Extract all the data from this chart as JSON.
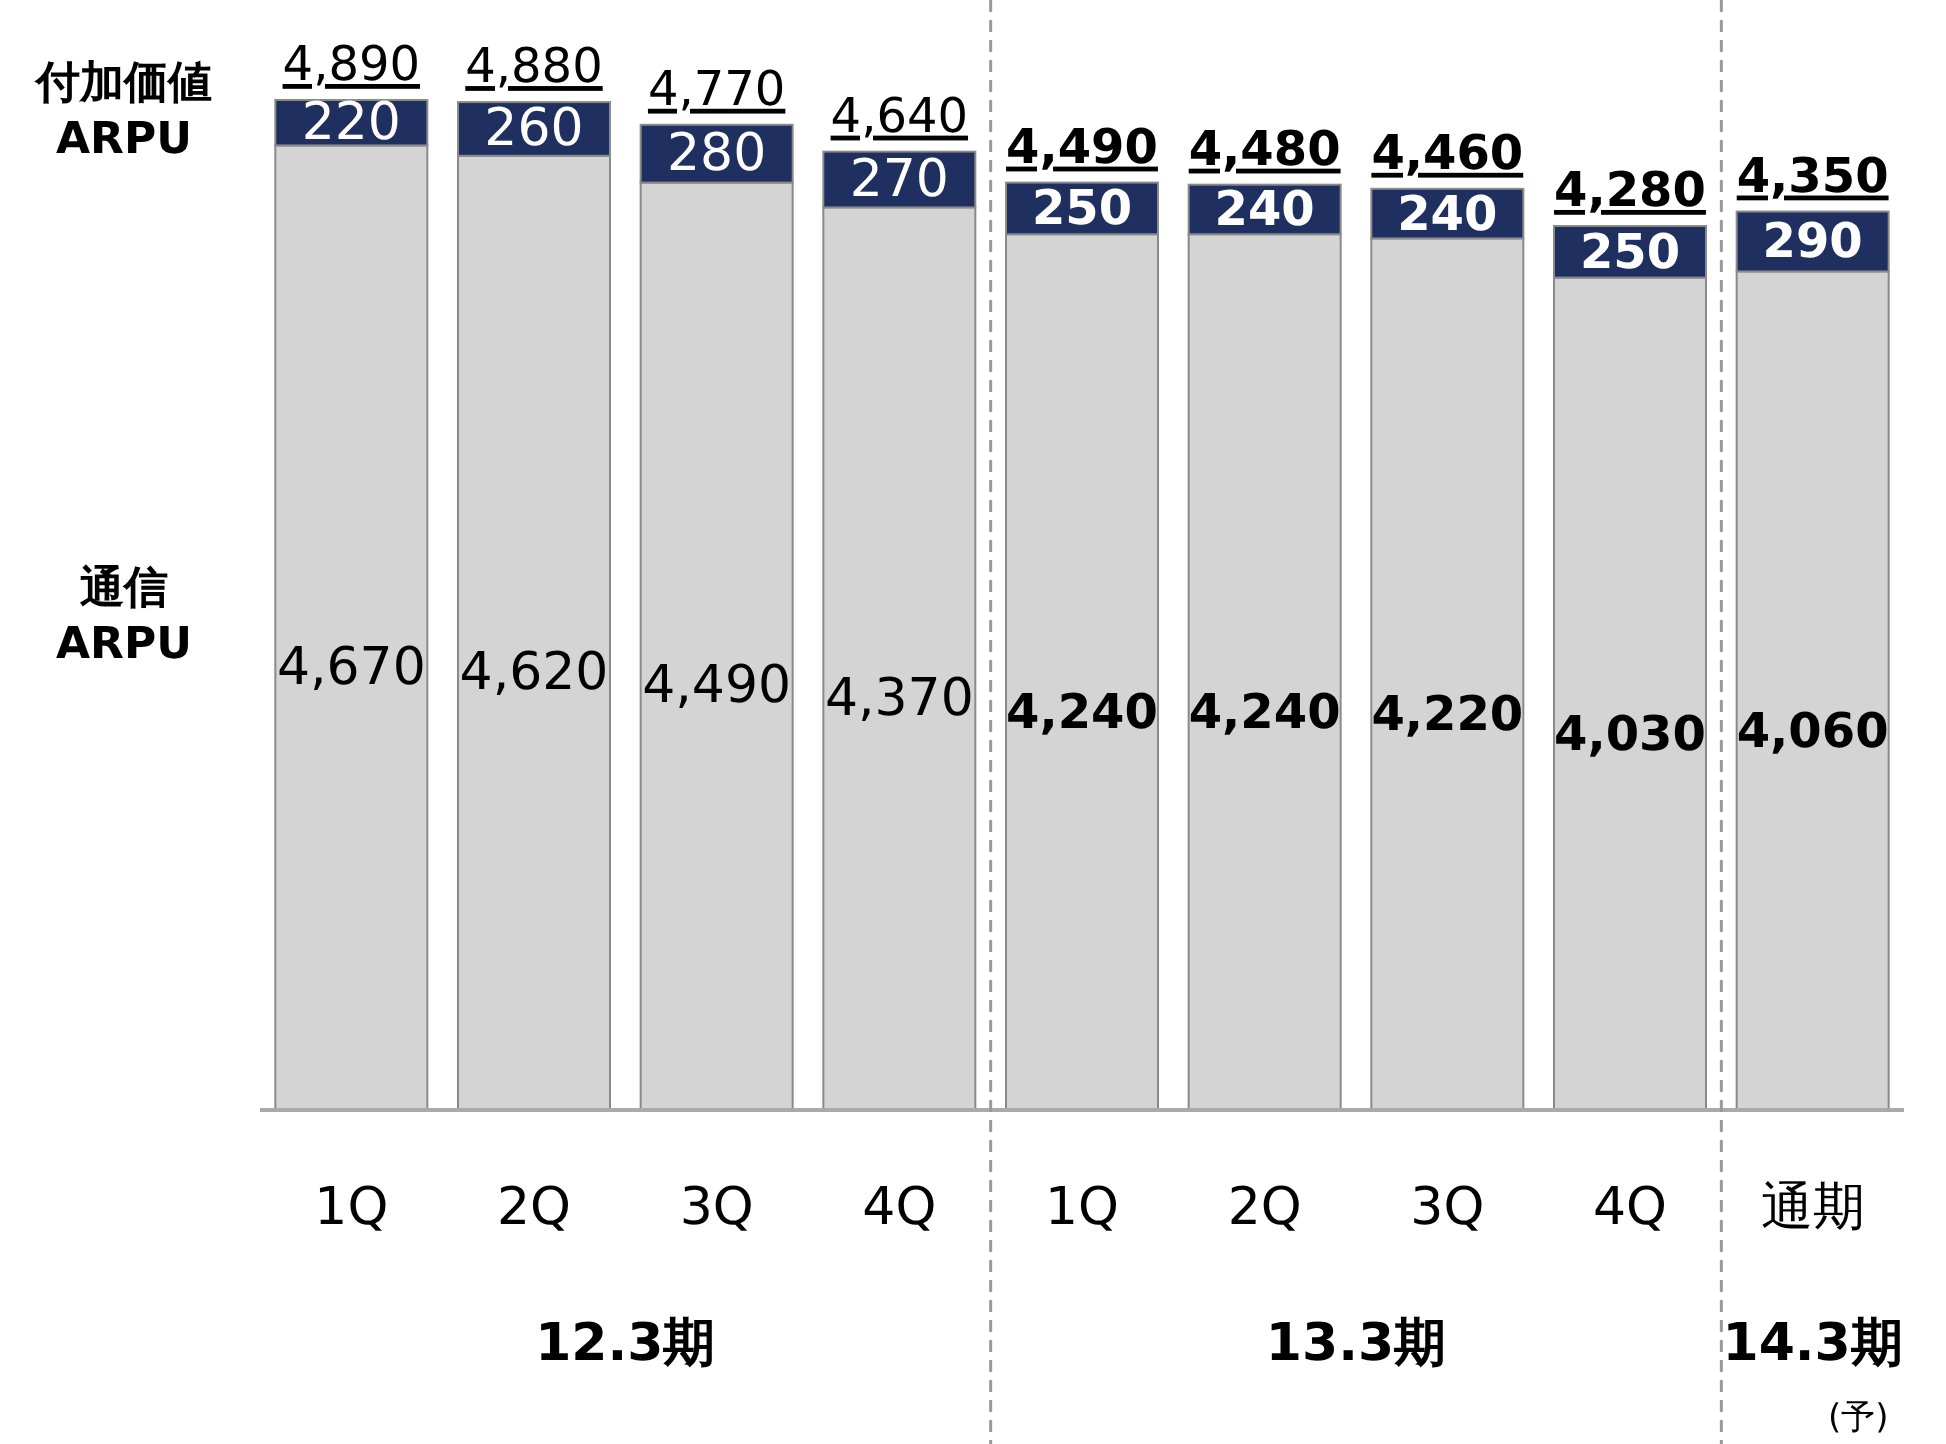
{
  "chart_data": {
    "type": "bar",
    "stacked": true,
    "legend": "left",
    "categories": [
      "1Q",
      "2Q",
      "3Q",
      "4Q",
      "1Q",
      "2Q",
      "3Q",
      "4Q",
      "通期"
    ],
    "series": [
      {
        "name": "通信ARPU",
        "color": "#d4d4d4",
        "values": [
          4670,
          4620,
          4490,
          4370,
          4240,
          4240,
          4220,
          4030,
          4060
        ],
        "value_labels": [
          "4,670",
          "4,620",
          "4,490",
          "4,370",
          "4,240",
          "4,240",
          "4,220",
          "4,030",
          "4,060"
        ]
      },
      {
        "name": "付加価値ARPU",
        "color": "#1f3060",
        "values": [
          220,
          260,
          280,
          270,
          250,
          240,
          240,
          250,
          290
        ],
        "value_labels": [
          "220",
          "260",
          "280",
          "270",
          "250",
          "240",
          "240",
          "250",
          "290"
        ]
      }
    ],
    "totals": [
      "4,890",
      "4,880",
      "4,770",
      "4,640",
      "4,490",
      "4,480",
      "4,460",
      "4,280",
      "4,350"
    ],
    "annotations": [
      "12.3期",
      "13.3期",
      "14.3期",
      "(予)"
    ]
  }
}
